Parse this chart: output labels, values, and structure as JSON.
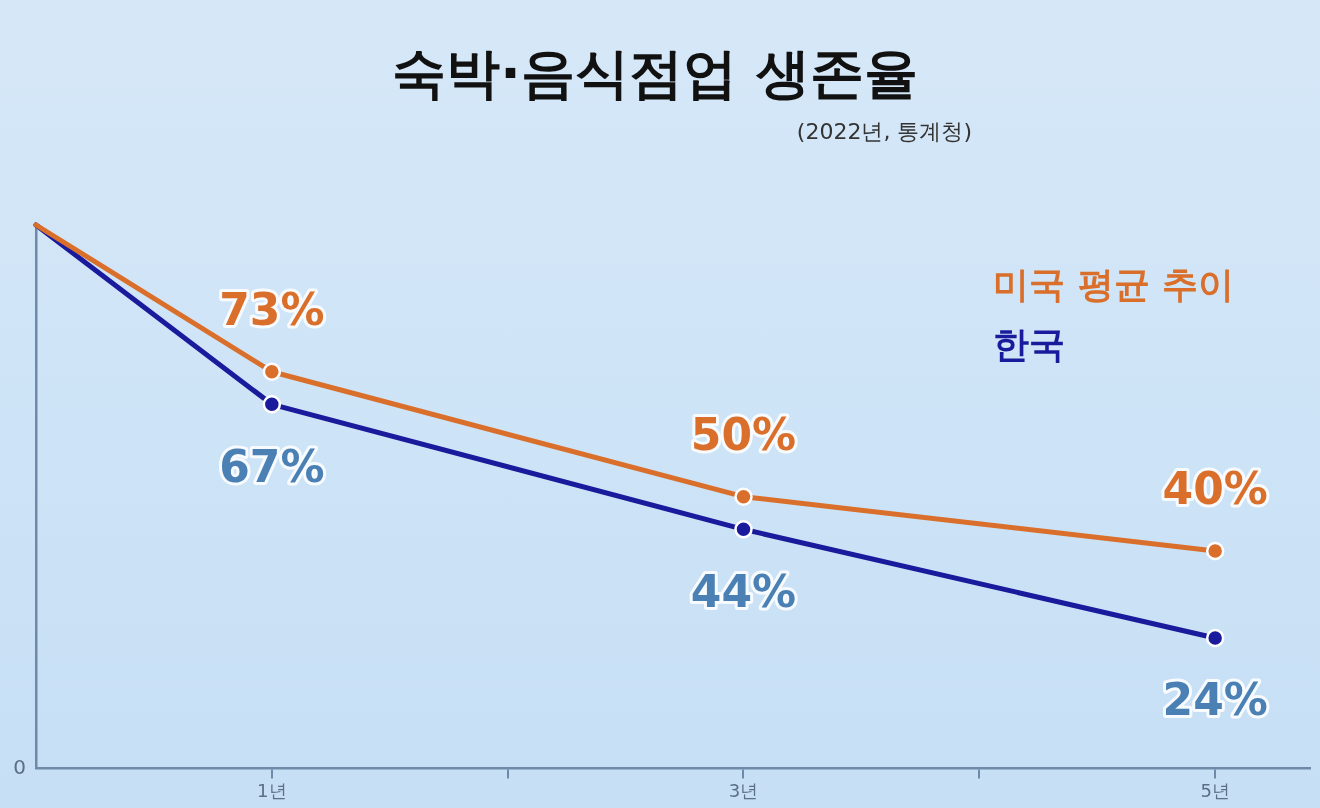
{
  "chart_data": {
    "type": "line",
    "title": "숙박·음식점업 생존율",
    "subtitle": "(2022년, 통계청)",
    "x": [
      0,
      1,
      3,
      5
    ],
    "xlim": [
      0,
      5.4
    ],
    "xticks": [
      {
        "value": 1,
        "label": "1년"
      },
      {
        "value": 2,
        "label": null
      },
      {
        "value": 3,
        "label": "3년"
      },
      {
        "value": 4,
        "label": null
      },
      {
        "value": 5,
        "label": "5년"
      }
    ],
    "ylim": [
      0,
      100
    ],
    "annotations": [
      "0"
    ],
    "grid": false,
    "legend": "top right",
    "marker": "circle",
    "line_style": "solid",
    "series": [
      {
        "name": "미국 평균 추이",
        "color": "#d96f2a",
        "values": [
          100,
          73,
          50,
          40
        ],
        "value_labels": [
          null,
          "73%",
          "50%",
          "40%"
        ]
      },
      {
        "name": "한국",
        "color": "#1a1a9c",
        "values": [
          100,
          67,
          44,
          24
        ],
        "value_labels": [
          null,
          "67%",
          "44%",
          "24%"
        ]
      }
    ]
  }
}
